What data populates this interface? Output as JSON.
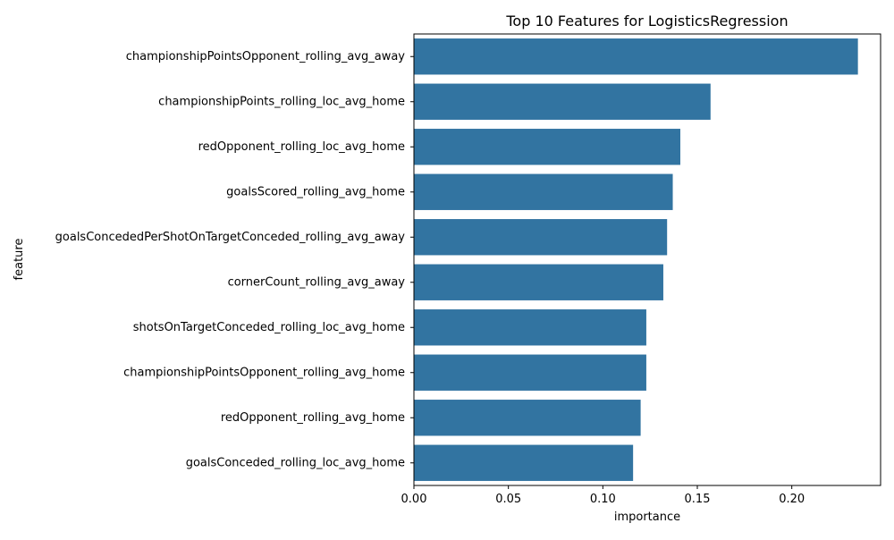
{
  "chart_data": {
    "type": "bar",
    "orientation": "horizontal",
    "title": "Top 10 Features for LogisticsRegression",
    "xlabel": "importance",
    "ylabel": "feature",
    "categories": [
      "championshipPointsOpponent_rolling_avg_away",
      "championshipPoints_rolling_loc_avg_home",
      "redOpponent_rolling_loc_avg_home",
      "goalsScored_rolling_avg_home",
      "goalsConcededPerShotOnTargetConceded_rolling_avg_away",
      "cornerCount_rolling_avg_away",
      "shotsOnTargetConceded_rolling_loc_avg_home",
      "championshipPointsOpponent_rolling_avg_home",
      "redOpponent_rolling_avg_home",
      "goalsConceded_rolling_loc_avg_home"
    ],
    "values": [
      0.235,
      0.157,
      0.141,
      0.137,
      0.134,
      0.132,
      0.123,
      0.123,
      0.12,
      0.116
    ],
    "xlim": [
      0,
      0.247
    ],
    "xticks": [
      0.0,
      0.05,
      0.1,
      0.15,
      0.2
    ],
    "xtick_labels": [
      "0.00",
      "0.05",
      "0.10",
      "0.15",
      "0.20"
    ],
    "bar_color": "#3274a1",
    "grid": false,
    "legend": "none"
  }
}
